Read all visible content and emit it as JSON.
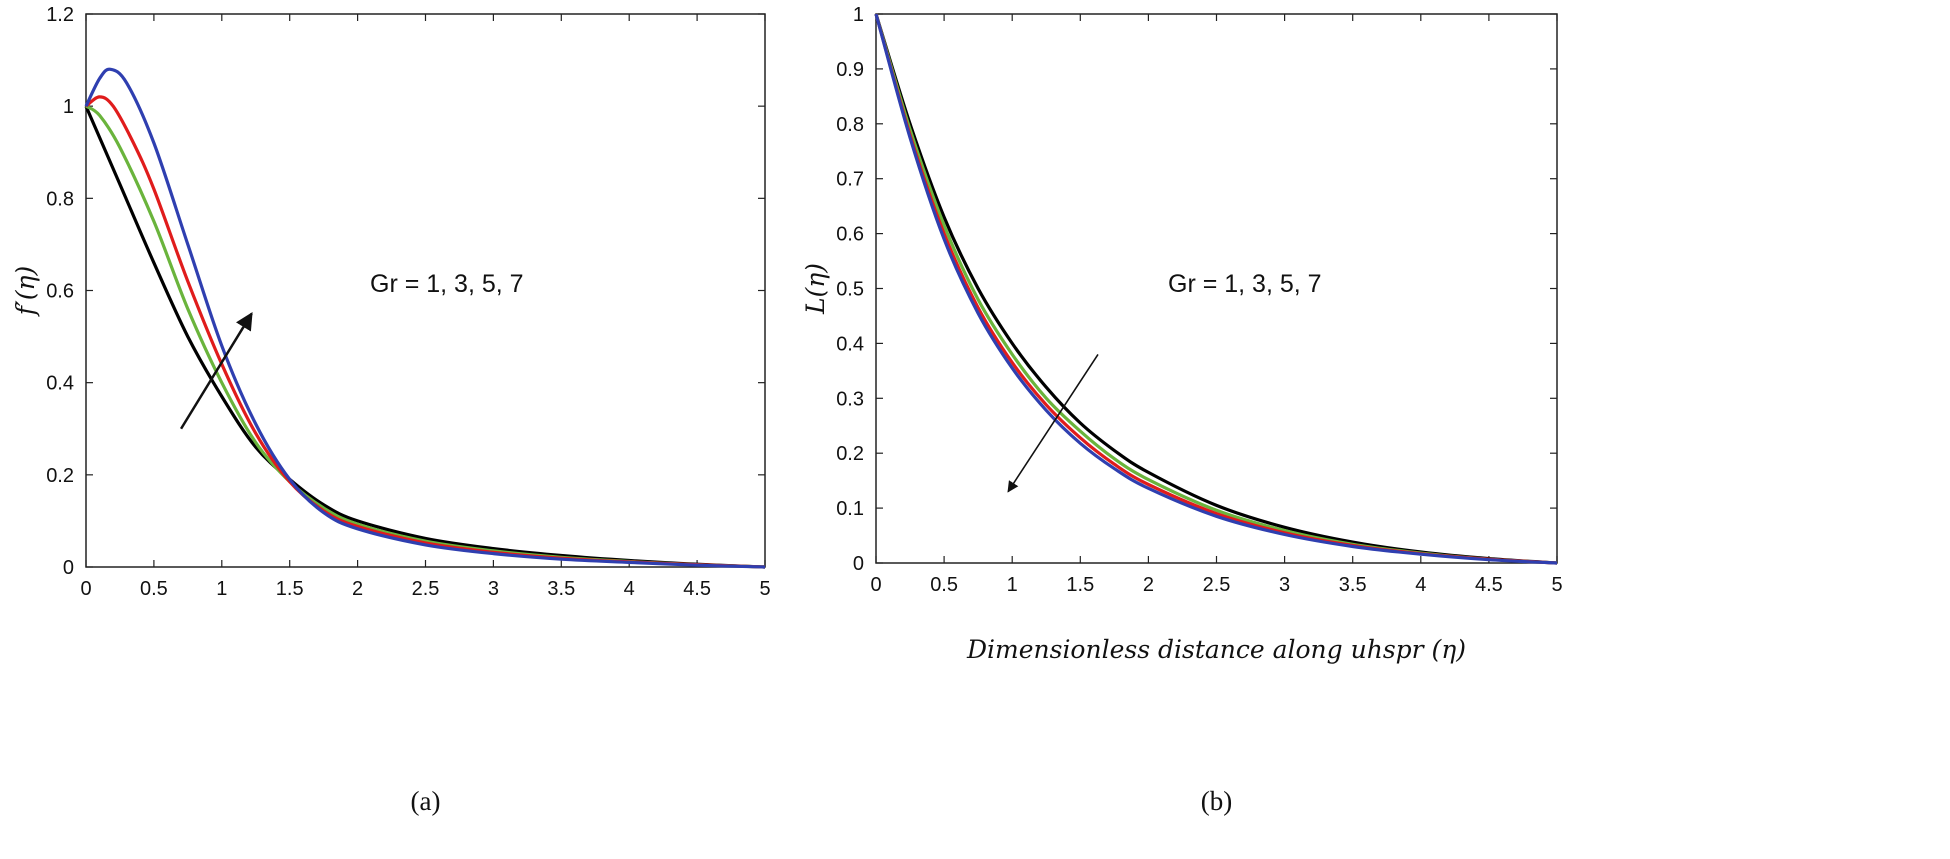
{
  "chart_data": [
    {
      "type": "line",
      "caption": "(a)",
      "xlabel": "",
      "ylabel": "f′(η)",
      "xlim": [
        0,
        5
      ],
      "ylim": [
        0,
        1.2
      ],
      "xticks": [
        0,
        0.5,
        1,
        1.5,
        2,
        2.5,
        3,
        3.5,
        4,
        4.5,
        5
      ],
      "yticks": [
        0,
        0.2,
        0.4,
        0.6,
        0.8,
        1,
        1.2
      ],
      "annotation": "Gr = 1, 3, 5, 7",
      "arrow": {
        "from": [
          0.7,
          0.3
        ],
        "to": [
          1.22,
          0.55
        ]
      },
      "series": [
        {
          "color": "#000000",
          "x": [
            0,
            0.25,
            0.5,
            0.75,
            1,
            1.25,
            1.5,
            1.75,
            2,
            2.5,
            3,
            3.5,
            4,
            4.5,
            5
          ],
          "y": [
            1.0,
            0.83,
            0.66,
            0.5,
            0.37,
            0.26,
            0.19,
            0.135,
            0.1,
            0.062,
            0.04,
            0.025,
            0.014,
            0.006,
            0.0
          ]
        },
        {
          "color": "#6ab43c",
          "x": [
            0,
            0.1,
            0.25,
            0.5,
            0.75,
            1,
            1.25,
            1.5,
            1.75,
            2,
            2.5,
            3,
            3.5,
            4,
            4.5,
            5
          ],
          "y": [
            1.0,
            0.98,
            0.91,
            0.75,
            0.56,
            0.4,
            0.27,
            0.185,
            0.128,
            0.093,
            0.056,
            0.035,
            0.021,
            0.012,
            0.005,
            0.0
          ]
        },
        {
          "color": "#e01c1c",
          "x": [
            0,
            0.1,
            0.2,
            0.35,
            0.5,
            0.75,
            1,
            1.25,
            1.5,
            1.75,
            2,
            2.5,
            3,
            3.5,
            4,
            4.5,
            5
          ],
          "y": [
            1.0,
            1.02,
            1.0,
            0.92,
            0.82,
            0.62,
            0.44,
            0.29,
            0.185,
            0.122,
            0.088,
            0.052,
            0.032,
            0.019,
            0.011,
            0.005,
            0.0
          ]
        },
        {
          "color": "#2f3fb0",
          "x": [
            0,
            0.1,
            0.18,
            0.3,
            0.5,
            0.75,
            1,
            1.25,
            1.5,
            1.75,
            2,
            2.5,
            3,
            3.5,
            4,
            4.5,
            5
          ],
          "y": [
            1.0,
            1.06,
            1.08,
            1.05,
            0.92,
            0.7,
            0.48,
            0.31,
            0.19,
            0.118,
            0.083,
            0.048,
            0.029,
            0.017,
            0.01,
            0.004,
            0.0
          ]
        }
      ]
    },
    {
      "type": "line",
      "caption": "(b)",
      "xlabel": "Dimensionless distance along uhspr (η)",
      "ylabel": "L(η)",
      "xlim": [
        0,
        5
      ],
      "ylim": [
        0,
        1
      ],
      "xticks": [
        0,
        0.5,
        1,
        1.5,
        2,
        2.5,
        3,
        3.5,
        4,
        4.5,
        5
      ],
      "yticks": [
        0,
        0.1,
        0.2,
        0.3,
        0.4,
        0.5,
        0.6,
        0.7,
        0.8,
        0.9,
        1
      ],
      "annotation": "Gr = 1, 3, 5, 7",
      "arrow": {
        "from": [
          1.63,
          0.38
        ],
        "to": [
          0.97,
          0.13
        ]
      },
      "series": [
        {
          "color": "#000000",
          "x": [
            0,
            0.25,
            0.5,
            0.75,
            1,
            1.25,
            1.5,
            1.75,
            2,
            2.5,
            3,
            3.5,
            4,
            4.5,
            5
          ],
          "y": [
            1.0,
            0.8,
            0.63,
            0.5,
            0.4,
            0.32,
            0.255,
            0.205,
            0.165,
            0.105,
            0.065,
            0.038,
            0.02,
            0.008,
            0.0
          ]
        },
        {
          "color": "#6ab43c",
          "x": [
            0,
            0.25,
            0.5,
            0.75,
            1,
            1.25,
            1.5,
            1.75,
            2,
            2.5,
            3,
            3.5,
            4,
            4.5,
            5
          ],
          "y": [
            1.0,
            0.79,
            0.615,
            0.48,
            0.38,
            0.3,
            0.24,
            0.19,
            0.152,
            0.096,
            0.059,
            0.034,
            0.018,
            0.007,
            0.0
          ]
        },
        {
          "color": "#e01c1c",
          "x": [
            0,
            0.25,
            0.5,
            0.75,
            1,
            1.25,
            1.5,
            1.75,
            2,
            2.5,
            3,
            3.5,
            4,
            4.5,
            5
          ],
          "y": [
            1.0,
            0.78,
            0.6,
            0.465,
            0.365,
            0.288,
            0.228,
            0.18,
            0.143,
            0.09,
            0.055,
            0.032,
            0.017,
            0.007,
            0.0
          ]
        },
        {
          "color": "#2f3fb0",
          "x": [
            0,
            0.25,
            0.5,
            0.75,
            1,
            1.25,
            1.5,
            1.75,
            2,
            2.5,
            3,
            3.5,
            4,
            4.5,
            5
          ],
          "y": [
            1.0,
            0.775,
            0.59,
            0.455,
            0.355,
            0.278,
            0.218,
            0.172,
            0.136,
            0.085,
            0.052,
            0.03,
            0.016,
            0.006,
            0.0
          ]
        }
      ]
    }
  ]
}
